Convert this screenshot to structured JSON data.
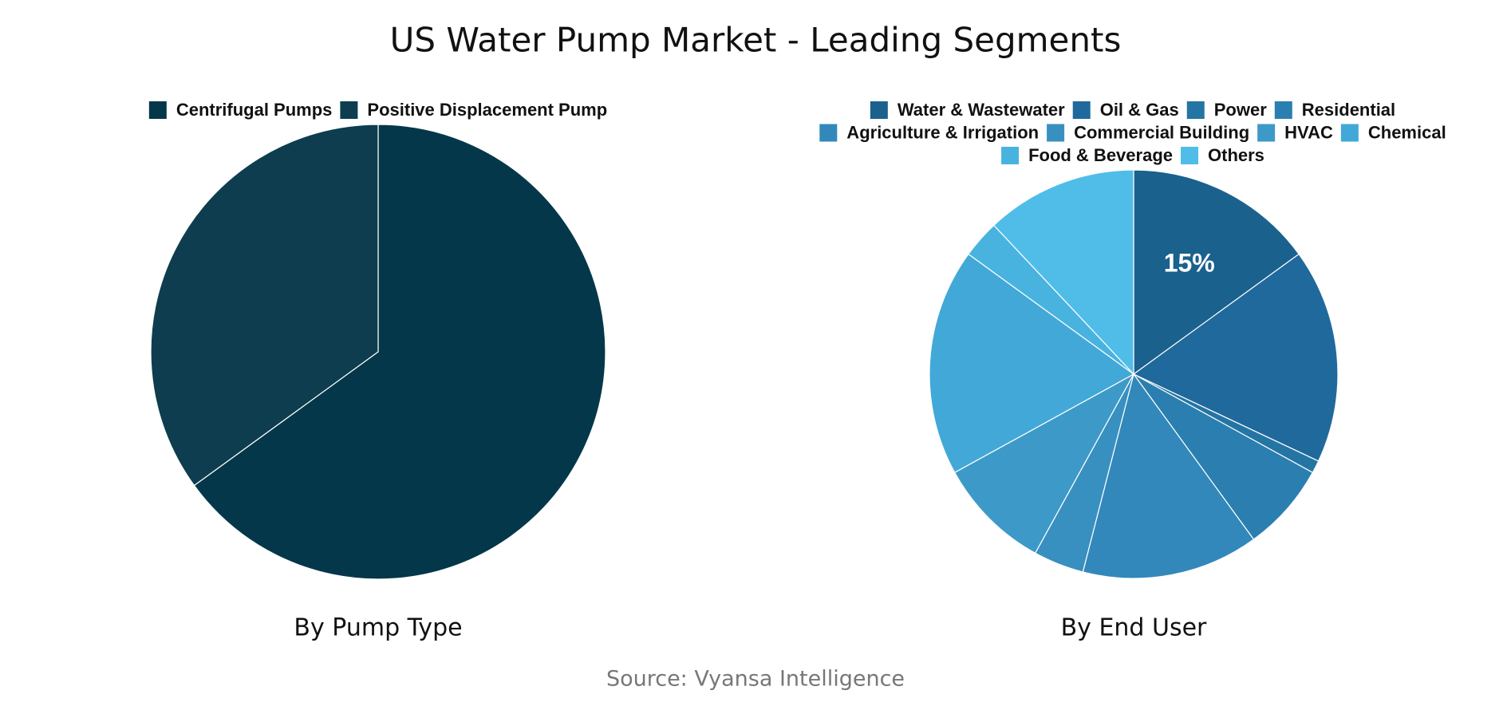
{
  "title": "US Water Pump Market - Leading Segments",
  "source": "Source: Vyansa Intelligence",
  "chart_data": [
    {
      "type": "pie",
      "title": "By Pump Type",
      "categories": [
        "Centrifugal Pumps",
        "Positive Displacement Pump"
      ],
      "values": [
        65,
        35
      ],
      "colors": [
        "#04374a",
        "#0d3d4f"
      ]
    },
    {
      "type": "pie",
      "title": "By End User",
      "categories": [
        "Water & Wastewater",
        "Oil & Gas",
        "Power",
        "Residential",
        "Agriculture & Irrigation",
        "Commercial Building",
        "HVAC",
        "Chemical",
        "Food & Beverage",
        "Others"
      ],
      "values": [
        15,
        17,
        1,
        7,
        14,
        4,
        9,
        18,
        3,
        12
      ],
      "value_labels": [
        "15%",
        null,
        null,
        null,
        null,
        null,
        null,
        null,
        null,
        null
      ],
      "colors": [
        "#1a618e",
        "#20699c",
        "#2475a3",
        "#2b7fb0",
        "#3288ba",
        "#3890c0",
        "#3d9ac8",
        "#42a8d8",
        "#49b3df",
        "#50bde9"
      ]
    }
  ]
}
